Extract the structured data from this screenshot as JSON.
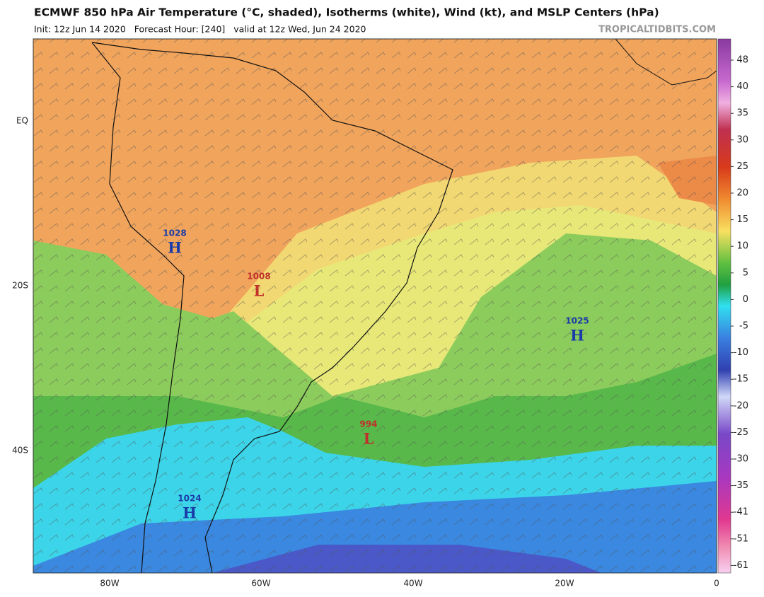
{
  "header": {
    "title": "ECMWF 850 hPa Air Temperature (°C, shaded), Isotherms (white), Wind (kt), and MSLP Centers (hPa)",
    "subtitle": "Init: 12z Jun 14 2020   Forecast Hour: [240]   valid at 12z Wed, Jun 24 2020",
    "site": "TROPICALTIDBITS.COM"
  },
  "map": {
    "lat_labels": [
      "EQ",
      "20S",
      "40S"
    ],
    "lon_labels": [
      "80W",
      "60W",
      "40W",
      "20W",
      "0"
    ],
    "pressure_centers": [
      {
        "value": "1028",
        "letter": "H"
      },
      {
        "value": "1008",
        "letter": "L"
      },
      {
        "value": "1025",
        "letter": "H"
      },
      {
        "value": "994",
        "letter": "L"
      },
      {
        "value": "1024",
        "letter": "H"
      }
    ]
  },
  "colorbar": {
    "ticks": [
      48,
      40,
      35,
      30,
      25,
      20,
      15,
      10,
      5,
      0,
      -5,
      -10,
      -15,
      -20,
      -25,
      -30,
      -35,
      -41,
      -51,
      -61
    ]
  }
}
